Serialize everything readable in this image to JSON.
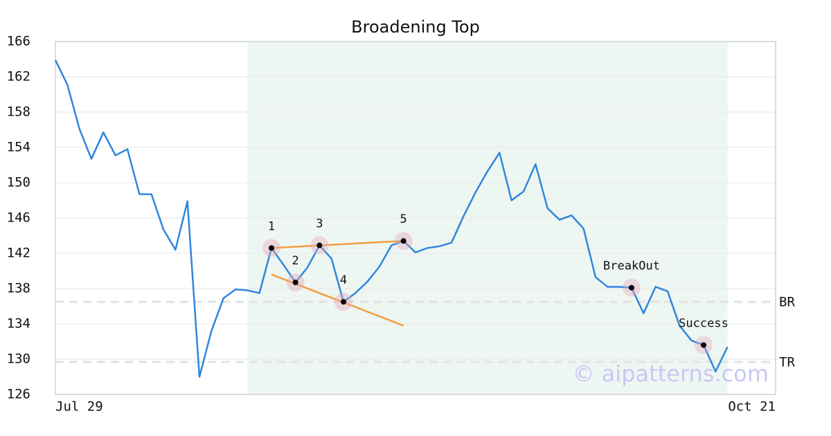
{
  "chart_data": {
    "type": "line",
    "title": "Broadening Top",
    "categories": [
      "Jul 29",
      null,
      null,
      null,
      null,
      null,
      null,
      null,
      null,
      null,
      null,
      null,
      null,
      null,
      null,
      null,
      null,
      null,
      null,
      null,
      null,
      null,
      null,
      null,
      null,
      null,
      null,
      null,
      null,
      null,
      null,
      null,
      null,
      null,
      null,
      null,
      null,
      null,
      null,
      null,
      null,
      null,
      null,
      null,
      null,
      null,
      null,
      null,
      null,
      null,
      null,
      null,
      null,
      null,
      null,
      null,
      null,
      null,
      null,
      null,
      "Oct 21"
    ],
    "series": [
      {
        "color": "#2e86de",
        "values": [
          163.9,
          161.1,
          156.1,
          152.7,
          155.7,
          153.1,
          153.8,
          148.7,
          148.7,
          144.7,
          142.4,
          147.9,
          128.0,
          133.2,
          136.9,
          137.9,
          137.8,
          137.5,
          142.6,
          140.7,
          138.7,
          140.4,
          142.9,
          141.4,
          136.5,
          137.5,
          138.8,
          140.5,
          142.9,
          143.4,
          142.1,
          142.6,
          142.8,
          143.2,
          146.2,
          148.9,
          151.3,
          153.4,
          148.0,
          149.0,
          152.1,
          147.1,
          145.8,
          146.3,
          144.8,
          139.3,
          138.2,
          138.2,
          138.1,
          135.2,
          138.2,
          137.7,
          133.8,
          132.1,
          131.6,
          128.6,
          131.4,
          null,
          null,
          null,
          null
        ]
      }
    ],
    "ylim": [
      126,
      166
    ],
    "yticks": [
      126,
      130,
      134,
      138,
      142,
      146,
      150,
      154,
      158,
      162,
      166
    ],
    "grid": true,
    "highlight": {
      "start": 16,
      "end": 56,
      "color": "#eef6f2"
    },
    "hlines": [
      {
        "label": "BR",
        "value": 136.5
      },
      {
        "label": "TR",
        "value": 129.7
      }
    ],
    "trendline_color": "#f39c3c",
    "trendlines": [
      {
        "x": [
          18,
          29
        ],
        "y": [
          142.6,
          143.4
        ]
      },
      {
        "x": [
          18,
          29
        ],
        "y": [
          139.6,
          133.8
        ]
      }
    ],
    "points": [
      {
        "label": "1",
        "index": 18
      },
      {
        "label": "2",
        "index": 20
      },
      {
        "label": "3",
        "index": 22
      },
      {
        "label": "4",
        "index": 24
      },
      {
        "label": "5",
        "index": 29
      },
      {
        "label": "BreakOut",
        "index": 48
      },
      {
        "label": "Success",
        "index": 54
      }
    ],
    "watermark": "© aipatterns.com"
  }
}
